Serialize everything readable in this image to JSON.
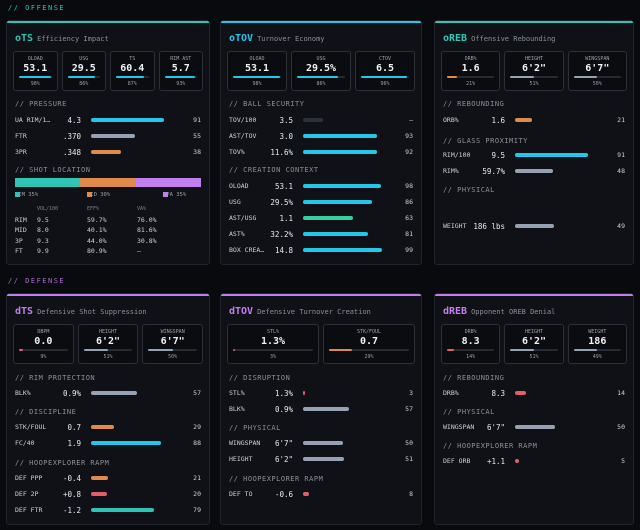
{
  "colors": {
    "teal": "#2ec4b6",
    "cyan": "#22c7ea",
    "purple": "#c37ef0",
    "orange": "#e08b4c",
    "gray": "#96a2b4",
    "green": "#36cfa0",
    "red": "#e35d6a",
    "dark": "#2c3038"
  },
  "offense": {
    "label": "// OFFENSE",
    "ots": {
      "code": "oTS",
      "subtitle": "Efficiency Impact",
      "tiles": [
        {
          "label": "OLOAD",
          "value": "53.1",
          "pct": "98%",
          "fill": 0.98,
          "color": "cyan"
        },
        {
          "label": "USG",
          "value": "29.5",
          "pct": "86%",
          "fill": 0.86,
          "color": "cyan"
        },
        {
          "label": "TS",
          "value": "60.4",
          "pct": "87%",
          "fill": 0.87,
          "color": "cyan"
        },
        {
          "label": "RIM AST",
          "value": "5.7",
          "pct": "93%",
          "fill": 0.93,
          "color": "cyan"
        }
      ],
      "pressure": {
        "title": "// PRESSURE",
        "rows": [
          {
            "label": "UA RIM/1…",
            "value": "4.3",
            "pct": "91",
            "fill": 0.91,
            "color": "cyan"
          },
          {
            "label": "FTR",
            "value": ".370",
            "pct": "55",
            "fill": 0.55,
            "color": "gray"
          },
          {
            "label": "3PR",
            "value": ".348",
            "pct": "38",
            "fill": 0.38,
            "color": "orange"
          }
        ]
      },
      "shot_location": {
        "title": "// SHOT LOCATION",
        "segments": [
          {
            "label": "RIM 35%",
            "share": 0.35,
            "color": "teal"
          },
          {
            "label": "MID 30%",
            "share": 0.3,
            "color": "orange"
          },
          {
            "label": "3PA 35%",
            "share": 0.35,
            "color": "purple"
          }
        ],
        "headers": [
          "",
          "VOL/100",
          "EFF%",
          "VA%"
        ],
        "rows": [
          [
            "RIM",
            "9.5",
            "59.7%",
            "76.0%"
          ],
          [
            "MID",
            "8.0",
            "40.1%",
            "81.6%"
          ],
          [
            "3P",
            "9.3",
            "44.0%",
            "30.8%"
          ],
          [
            "FT",
            "9.9",
            "80.9%",
            "–"
          ]
        ]
      }
    },
    "otov": {
      "code": "oTOV",
      "subtitle": "Turnover Economy",
      "tiles": [
        {
          "label": "OLOAD",
          "value": "53.1",
          "pct": "98%",
          "fill": 0.98,
          "color": "cyan"
        },
        {
          "label": "USG",
          "value": "29.5%",
          "pct": "86%",
          "fill": 0.86,
          "color": "cyan"
        },
        {
          "label": "CTOV",
          "value": "6.5",
          "pct": "96%",
          "fill": 0.96,
          "color": "cyan"
        }
      ],
      "ball_security": {
        "title": "// BALL SECURITY",
        "rows": [
          {
            "label": "TOV/100",
            "value": "3.5",
            "pct": "–",
            "fill": 0.25,
            "color": "dark"
          },
          {
            "label": "AST/TOV",
            "value": "3.0",
            "pct": "93",
            "fill": 0.93,
            "color": "cyan"
          },
          {
            "label": "TOV%",
            "value": "11.6%",
            "pct": "92",
            "fill": 0.92,
            "color": "cyan"
          }
        ]
      },
      "creation": {
        "title": "// CREATION CONTEXT",
        "rows": [
          {
            "label": "OLOAD",
            "value": "53.1",
            "pct": "98",
            "fill": 0.98,
            "color": "cyan"
          },
          {
            "label": "USG",
            "value": "29.5%",
            "pct": "86",
            "fill": 0.86,
            "color": "cyan"
          },
          {
            "label": "AST/USG",
            "value": "1.1",
            "pct": "63",
            "fill": 0.63,
            "color": "green"
          },
          {
            "label": "AST%",
            "value": "32.2%",
            "pct": "81",
            "fill": 0.81,
            "color": "cyan"
          },
          {
            "label": "BOX CREA…",
            "value": "14.8",
            "pct": "99",
            "fill": 0.99,
            "color": "cyan"
          }
        ]
      }
    },
    "oreb": {
      "code": "oREB",
      "subtitle": "Offensive Rebounding",
      "tiles": [
        {
          "label": "ORB%",
          "value": "1.6",
          "pct": "21%",
          "fill": 0.21,
          "color": "orange"
        },
        {
          "label": "HEIGHT",
          "value": "6'2\"",
          "pct": "51%",
          "fill": 0.51,
          "color": "gray"
        },
        {
          "label": "WINGSPAN",
          "value": "6'7\"",
          "pct": "50%",
          "fill": 0.5,
          "color": "gray"
        }
      ],
      "rebounding": {
        "title": "// REBOUNDING",
        "rows": [
          {
            "label": "ORB%",
            "value": "1.6",
            "pct": "21",
            "fill": 0.21,
            "color": "orange"
          }
        ]
      },
      "glass": {
        "title": "// GLASS PROXIMITY",
        "rows": [
          {
            "label": "RIM/100",
            "value": "9.5",
            "pct": "91",
            "fill": 0.91,
            "color": "cyan"
          },
          {
            "label": "RIM%",
            "value": "59.7%",
            "pct": "48",
            "fill": 0.48,
            "color": "gray"
          }
        ]
      },
      "physical": {
        "title": "// PHYSICAL",
        "rows": [
          {
            "label": "WEIGHT",
            "value": "186 lbs",
            "pct": "49",
            "fill": 0.49,
            "color": "gray"
          }
        ]
      }
    }
  },
  "defense": {
    "label": "// DEFENSE",
    "dts": {
      "code": "dTS",
      "subtitle": "Defensive Shot Suppression",
      "tiles": [
        {
          "label": "DBPM",
          "value": "0.0",
          "pct": "9%",
          "fill": 0.09,
          "color": "red"
        },
        {
          "label": "HEIGHT",
          "value": "6'2\"",
          "pct": "51%",
          "fill": 0.51,
          "color": "gray"
        },
        {
          "label": "WINGSPAN",
          "value": "6'7\"",
          "pct": "50%",
          "fill": 0.5,
          "color": "gray"
        }
      ],
      "rim": {
        "title": "// RIM PROTECTION",
        "rows": [
          {
            "label": "BLK%",
            "value": "0.9%",
            "pct": "57",
            "fill": 0.57,
            "color": "gray"
          }
        ]
      },
      "discipline": {
        "title": "// DISCIPLINE",
        "rows": [
          {
            "label": "STK/FOUL",
            "value": "0.7",
            "pct": "29",
            "fill": 0.29,
            "color": "orange"
          },
          {
            "label": "FC/40",
            "value": "1.9",
            "pct": "88",
            "fill": 0.88,
            "color": "cyan"
          }
        ]
      },
      "rapm": {
        "title": "// HOOPEXPLORER RAPM",
        "rows": [
          {
            "label": "DEF PPP",
            "value": "-0.4",
            "pct": "21",
            "fill": 0.21,
            "color": "orange"
          },
          {
            "label": "DEF 2P",
            "value": "+0.8",
            "pct": "20",
            "fill": 0.2,
            "color": "red"
          },
          {
            "label": "DEF FTR",
            "value": "-1.2",
            "pct": "79",
            "fill": 0.79,
            "color": "teal"
          }
        ]
      }
    },
    "dtov": {
      "code": "dTOV",
      "subtitle": "Defensive Turnover Creation",
      "tiles": [
        {
          "label": "STL%",
          "value": "1.3%",
          "pct": "3%",
          "fill": 0.03,
          "color": "red"
        },
        {
          "label": "STK/FOUL",
          "value": "0.7",
          "pct": "29%",
          "fill": 0.29,
          "color": "orange"
        }
      ],
      "disruption": {
        "title": "// DISRUPTION",
        "rows": [
          {
            "label": "STL%",
            "value": "1.3%",
            "pct": "3",
            "fill": 0.03,
            "color": "red"
          },
          {
            "label": "BLK%",
            "value": "0.9%",
            "pct": "57",
            "fill": 0.57,
            "color": "gray"
          }
        ]
      },
      "physical": {
        "title": "// PHYSICAL",
        "rows": [
          {
            "label": "WINGSPAN",
            "value": "6'7\"",
            "pct": "50",
            "fill": 0.5,
            "color": "gray"
          },
          {
            "label": "HEIGHT",
            "value": "6'2\"",
            "pct": "51",
            "fill": 0.51,
            "color": "gray"
          }
        ]
      },
      "rapm": {
        "title": "// HOOPEXPLORER RAPM",
        "rows": [
          {
            "label": "DEF TO",
            "value": "-0.6",
            "pct": "8",
            "fill": 0.08,
            "color": "red"
          }
        ]
      }
    },
    "dreb": {
      "code": "dREB",
      "subtitle": "Opponent OREB Denial",
      "tiles": [
        {
          "label": "DRB%",
          "value": "8.3",
          "pct": "14%",
          "fill": 0.14,
          "color": "red"
        },
        {
          "label": "HEIGHT",
          "value": "6'2\"",
          "pct": "51%",
          "fill": 0.51,
          "color": "gray"
        },
        {
          "label": "WEIGHT",
          "value": "186",
          "pct": "49%",
          "fill": 0.49,
          "color": "gray"
        }
      ],
      "rebounding": {
        "title": "// REBOUNDING",
        "rows": [
          {
            "label": "DRB%",
            "value": "8.3",
            "pct": "14",
            "fill": 0.14,
            "color": "red"
          }
        ]
      },
      "physical": {
        "title": "// PHYSICAL",
        "rows": [
          {
            "label": "WINGSPAN",
            "value": "6'7\"",
            "pct": "50",
            "fill": 0.5,
            "color": "gray"
          }
        ]
      },
      "rapm": {
        "title": "// HOOPEXPLORER RAPM",
        "rows": [
          {
            "label": "DEF ORB",
            "value": "+1.1",
            "pct": "5",
            "fill": 0.05,
            "color": "red"
          }
        ]
      }
    }
  }
}
